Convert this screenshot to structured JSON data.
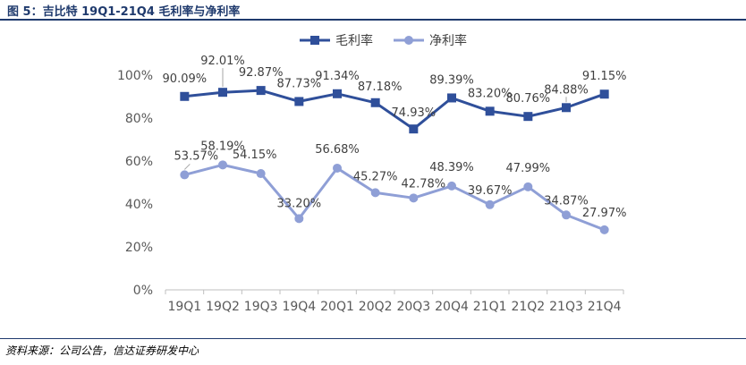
{
  "header": {
    "title": "图 5：吉比特 19Q1-21Q4 毛利率与净利率"
  },
  "footer": {
    "source": "资料来源：公司公告，信达证券研发中心"
  },
  "colors": {
    "gross": "#2f4f9a",
    "net": "#8f9fd6",
    "title": "#1f3a6d"
  },
  "chart_data": {
    "type": "line",
    "title": "",
    "xlabel": "",
    "ylabel": "",
    "ylim": [
      0,
      100
    ],
    "y_ticks": [
      "0%",
      "20%",
      "40%",
      "60%",
      "80%",
      "100%"
    ],
    "legend_position": "top",
    "grid": false,
    "categories": [
      "19Q1",
      "19Q2",
      "19Q3",
      "19Q4",
      "20Q1",
      "20Q2",
      "20Q3",
      "20Q4",
      "21Q1",
      "21Q2",
      "21Q3",
      "21Q4"
    ],
    "series": [
      {
        "name": "毛利率",
        "marker": "square",
        "values": [
          90.09,
          92.01,
          92.87,
          87.73,
          91.34,
          87.18,
          74.93,
          89.39,
          83.2,
          80.76,
          84.88,
          91.15
        ],
        "labels": [
          "90.09%",
          "92.01%",
          "92.87%",
          "87.73%",
          "91.34%",
          "87.18%",
          "74.93%",
          "89.39%",
          "83.20%",
          "80.76%",
          "84.88%",
          "91.15%"
        ]
      },
      {
        "name": "净利率",
        "marker": "circle",
        "values": [
          53.57,
          58.19,
          54.15,
          33.2,
          56.68,
          45.27,
          42.78,
          48.39,
          39.67,
          47.99,
          34.87,
          27.97
        ],
        "labels": [
          "53.57%",
          "58.19%",
          "54.15%",
          "33.20%",
          "56.68%",
          "45.27%",
          "42.78%",
          "48.39%",
          "39.67%",
          "47.99%",
          "34.87%",
          "27.97%"
        ]
      }
    ]
  }
}
